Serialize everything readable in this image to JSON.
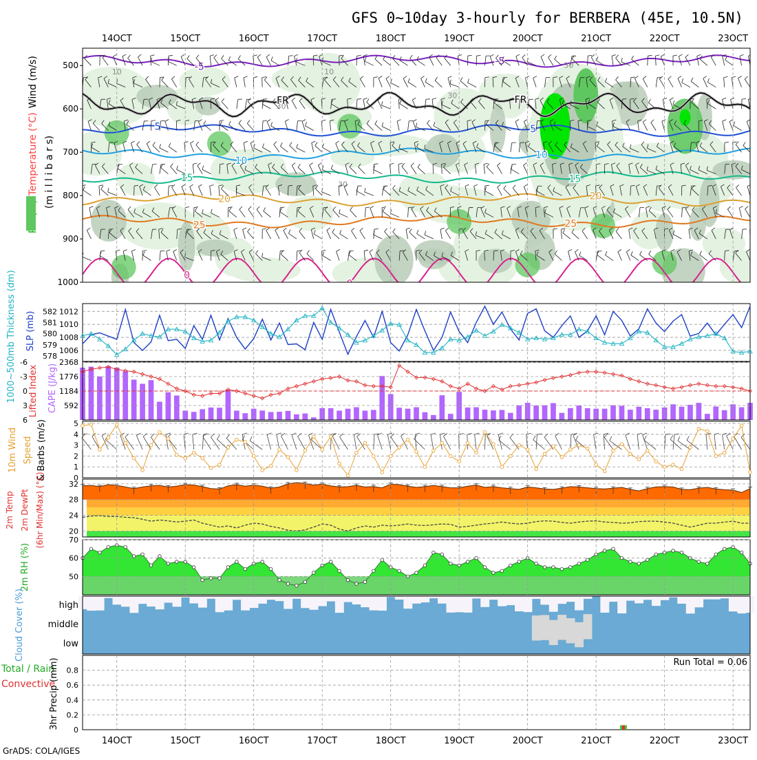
{
  "title": "GFS 0~10day 3-hourly for BERBERA (45E, 10.5N)",
  "credit": "GrADS: COLA/IGES",
  "time_axis": {
    "labels": [
      "14OCT",
      "15OCT",
      "16OCT",
      "17OCT",
      "18OCT",
      "19OCT",
      "20OCT",
      "21OCT",
      "22OCT",
      "23OCT"
    ],
    "start_day": 13.5,
    "end_day": 23.25
  },
  "chart_data": [
    {
      "type": "heatmap",
      "id": "profile",
      "ylabel_parts": [
        "RH (%)",
        "Temperature (°C)",
        "Wind (m/s)"
      ],
      "ylabel_unit": "(m i l l i b a r s)",
      "y_ticks": [
        500,
        600,
        700,
        800,
        900,
        1000
      ],
      "y_range": [
        460,
        1000
      ],
      "isotherms": [
        {
          "label": "-5",
          "color": "#7a1fbf",
          "base": 490
        },
        {
          "label": "FR",
          "color": "#000000",
          "base": 590
        },
        {
          "label": "5",
          "color": "#1f4fd6",
          "base": 650
        },
        {
          "label": "10",
          "color": "#1fa0e0",
          "base": 705
        },
        {
          "label": "15",
          "color": "#14b98c",
          "base": 758
        },
        {
          "label": "20",
          "color": "#dca032",
          "base": 810
        },
        {
          "label": "25",
          "color": "#e0781e",
          "base": 860
        },
        {
          "label": "0",
          "color": "#d8208c",
          "base": 960
        }
      ],
      "rh_labels": [
        "10",
        "10",
        "30",
        "30",
        "30",
        "30"
      ],
      "colors": {
        "rh_light": "#e4f2e1",
        "rh_mid": "#b9ccb9",
        "rh_dark": "#5fc75f",
        "rh_peak": "#00e600"
      }
    },
    {
      "type": "line",
      "id": "slp_thickness",
      "ylabel_left": "1000~500mb Thickness (dm)",
      "ylabel_right": "SLP (mb)",
      "left_ticks": [
        578,
        579,
        580,
        581,
        582
      ],
      "left_range": [
        577.5,
        582.7
      ],
      "right_ticks": [
        1006,
        1008,
        1010,
        1012
      ],
      "right_range": [
        1004.3,
        1013.2
      ],
      "series": [
        {
          "name": "SLP (mb)",
          "color": "#1c3fc4",
          "values": [
            1007.0,
            1008.4,
            1008.7,
            1008.2,
            1007.7,
            1012.3,
            1007.2,
            1006.0,
            1007.3,
            1011.4,
            1007.5,
            1007.7,
            1006.3,
            1009.8,
            1007.7,
            1011.4,
            1007.6,
            1010.9,
            1008.0,
            1006.2,
            1007.8,
            1010.8,
            1007.6,
            1010.2,
            1006.9,
            1007.0,
            1006.1,
            1010.3,
            1007.7,
            1012.3,
            1008.8,
            1005.4,
            1008.1,
            1010.6,
            1008.0,
            1012.0,
            1007.2,
            1005.9,
            1008.4,
            1012.3,
            1009.0,
            1006.0,
            1008.0,
            1011.9,
            1008.9,
            1007.2,
            1010.3,
            1012.8,
            1010.0,
            1011.9,
            1009.3,
            1007.6,
            1011.7,
            1012.4,
            1009.0,
            1008.0,
            1009.8,
            1011.3,
            1008.0,
            1009.0,
            1011.3,
            1008.4,
            1012.0,
            1010.6,
            1008.2,
            1009.3,
            1012.4,
            1010.2,
            1008.9,
            1010.5,
            1011.5,
            1008.2,
            1008.6,
            1010.2,
            1008.4,
            1010.0,
            1011.5,
            1009.5,
            1012.8
          ]
        },
        {
          "name": "1000~500mb Thickness (dm)",
          "color": "#22b3c4",
          "values": [
            579.8,
            580.0,
            579.5,
            578.9,
            578.1,
            578.6,
            579.4,
            580.0,
            579.8,
            579.7,
            580.4,
            580.4,
            580.2,
            579.6,
            579.3,
            579.4,
            580.1,
            581.1,
            581.5,
            581.5,
            581.2,
            580.6,
            580.0,
            579.7,
            580.4,
            581.2,
            581.6,
            581.6,
            582.3,
            581.0,
            580.5,
            579.9,
            579.2,
            579.4,
            579.8,
            580.3,
            580.9,
            580.8,
            579.4,
            579.0,
            578.3,
            578.3,
            578.7,
            579.5,
            579.4,
            579.7,
            580.3,
            579.8,
            580.2,
            580.8,
            580.5,
            580.1,
            579.5,
            579.6,
            579.5,
            579.6,
            579.9,
            579.9,
            580.4,
            580.2,
            579.6,
            579.2,
            579.1,
            579.1,
            579.6,
            580.2,
            580.1,
            579.4,
            578.8,
            578.8,
            579.1,
            579.5,
            579.7,
            579.8,
            580.0,
            579.6,
            578.4,
            578.3,
            578.4
          ]
        }
      ]
    },
    {
      "type": "bar",
      "id": "cape_li",
      "ylabel_left": "Lifted Index",
      "ylabel_right": "CAPE (J/kg)",
      "left_ticks": [
        -6,
        -3,
        0,
        3,
        6
      ],
      "right_ticks": [
        592,
        1184,
        1776,
        2368
      ],
      "cape_range": [
        0,
        2368
      ],
      "series": [
        {
          "name": "CAPE (J/kg)",
          "color": "#b266ff",
          "values": [
            2140,
            2180,
            1780,
            2200,
            2140,
            1990,
            1650,
            1480,
            1630,
            745,
            1130,
            1000,
            380,
            330,
            440,
            510,
            500,
            1240,
            380,
            275,
            460,
            385,
            325,
            335,
            370,
            230,
            265,
            105,
            485,
            480,
            380,
            460,
            520,
            380,
            410,
            1800,
            1060,
            500,
            460,
            520,
            315,
            200,
            1010,
            250,
            1150,
            510,
            520,
            420,
            390,
            410,
            290,
            595,
            700,
            590,
            600,
            690,
            290,
            485,
            590,
            480,
            460,
            460,
            600,
            580,
            420,
            540,
            480,
            420,
            510,
            640,
            540,
            620,
            700,
            250,
            550,
            400,
            640,
            520,
            700
          ]
        },
        {
          "name": "Lifted Index",
          "color": "#e03030",
          "values": [
            -4.0,
            -4.5,
            -4.8,
            -5.0,
            -4.5,
            -4.2,
            -4.0,
            -3.5,
            -3.0,
            -2.5,
            -1.5,
            -0.5,
            0.0,
            0.8,
            1.0,
            0.5,
            0.5,
            -0.3,
            0.0,
            0.5,
            1.0,
            1.5,
            0.8,
            0.5,
            -0.5,
            -1.0,
            -1.5,
            -2.0,
            -2.5,
            -2.7,
            -3.0,
            -2.2,
            -2.0,
            -1.2,
            -1.0,
            -1.0,
            -0.8,
            -5.3,
            -4.0,
            -2.8,
            -2.8,
            -2.5,
            -2.0,
            -1.0,
            -0.5,
            -1.5,
            -0.5,
            0.0,
            -1.0,
            -0.3,
            -1.0,
            -1.2,
            -1.5,
            -1.8,
            -2.3,
            -2.7,
            -3.0,
            -3.3,
            -3.8,
            -4.0,
            -4.0,
            -3.8,
            -3.5,
            -3.2,
            -2.5,
            -2.0,
            -1.5,
            -1.2,
            -0.8,
            -0.5,
            -0.8,
            -1.2,
            -1.5,
            -1.2,
            -1.0,
            -1.0,
            -0.8,
            -0.5,
            0.0
          ]
        }
      ]
    },
    {
      "type": "line",
      "id": "wind10m",
      "ylabel": "10m Wind Speed & Barbs (m/s)",
      "y_ticks": [
        0,
        1,
        2,
        3,
        4,
        5
      ],
      "y_range": [
        0,
        5.2
      ],
      "series": [
        {
          "name": "10m Wind Speed",
          "color": "#e8a030",
          "values": [
            4.8,
            4.9,
            2.6,
            3.7,
            4.9,
            3.2,
            1.8,
            0.7,
            3.0,
            4.2,
            3.6,
            2.1,
            1.8,
            2.3,
            1.8,
            0.9,
            1.2,
            2.8,
            3.5,
            3.3,
            2.0,
            0.7,
            1.1,
            2.6,
            1.9,
            0.7,
            2.5,
            3.8,
            2.6,
            3.8,
            1.3,
            0.2,
            2.3,
            3.2,
            2.0,
            0.5,
            2.0,
            2.8,
            3.5,
            2.4,
            1.0,
            2.5,
            3.2,
            2.0,
            1.5,
            3.2,
            2.3,
            4.2,
            3.1,
            1.0,
            2.0,
            3.0,
            2.6,
            0.8,
            2.2,
            2.9,
            1.9,
            2.6,
            3.0,
            2.7,
            1.2,
            0.6,
            2.5,
            3.1,
            2.2,
            1.7,
            2.5,
            1.5,
            1.0,
            1.2,
            0.8,
            2.8,
            4.5,
            4.3,
            2.0,
            2.3,
            3.6,
            4.8,
            0.5
          ]
        }
      ]
    },
    {
      "type": "area",
      "id": "temp2m",
      "ylabel_parts": [
        "2m Temp",
        "2m DewPt",
        "(6hr Min/Max) (°C)"
      ],
      "y_ticks": [
        20,
        24,
        28,
        32
      ],
      "y_range": [
        18.5,
        33.2
      ],
      "series": [
        {
          "name": "2m Temp",
          "color": "#ff6a00",
          "values": [
            31.5,
            31.6,
            31.3,
            31.8,
            31.6,
            31.2,
            30.8,
            31.2,
            31.5,
            31.6,
            31.2,
            31.4,
            31.8,
            31.7,
            31.3,
            30.8,
            30.7,
            31.5,
            31.8,
            31.4,
            31.7,
            31.4,
            30.9,
            31.2,
            32.0,
            32.3,
            32.1,
            31.7,
            31.9,
            31.5,
            31.2,
            31.3,
            31.6,
            31.2,
            31.3,
            31.0,
            31.9,
            31.8,
            31.4,
            31.1,
            31.3,
            31.6,
            31.3,
            31.0,
            31.0,
            31.4,
            31.7,
            31.1,
            31.3,
            31.0,
            30.8,
            30.6,
            31.2,
            31.0,
            30.7,
            30.6,
            30.9,
            31.3,
            31.2,
            31.0,
            30.8,
            30.7,
            30.9,
            31.1,
            30.6,
            30.2,
            30.8,
            31.2,
            31.3,
            31.2,
            30.6,
            30.5,
            30.9,
            31.1,
            30.7,
            30.5,
            30.4,
            29.8,
            30.8
          ]
        },
        {
          "name": "2m DewPt",
          "color": "#444444",
          "values": [
            23.5,
            23.8,
            23.9,
            23.7,
            23.7,
            23.5,
            23.4,
            23.0,
            22.5,
            22.8,
            22.6,
            22.3,
            22.5,
            22.8,
            22.0,
            21.5,
            21.0,
            21.3,
            20.8,
            21.5,
            22.0,
            21.8,
            21.2,
            20.8,
            20.2,
            20.0,
            20.3,
            21.0,
            21.8,
            21.5,
            20.5,
            20.0,
            20.8,
            21.3,
            21.0,
            21.5,
            21.3,
            21.5,
            21.8,
            21.5,
            21.4,
            21.6,
            21.8,
            21.7,
            21.0,
            21.2,
            21.5,
            21.8,
            22.0,
            22.3,
            22.0,
            21.8,
            22.0,
            22.4,
            22.6,
            22.5,
            22.2,
            22.0,
            22.3,
            22.5,
            22.6,
            22.3,
            22.2,
            22.0,
            22.1,
            22.4,
            22.5,
            22.5,
            22.3,
            22.0,
            21.5,
            21.0,
            21.5,
            22.0,
            22.0,
            22.3,
            22.5,
            22.0,
            22.0
          ]
        }
      ]
    },
    {
      "type": "area",
      "id": "rh2m",
      "ylabel": "2m RH (%)",
      "y_ticks": [
        50,
        60,
        70
      ],
      "y_range": [
        40,
        70
      ],
      "series": [
        {
          "name": "2m RH",
          "color": "#33e633",
          "values": [
            60,
            65,
            63,
            66,
            67,
            66,
            61,
            62,
            56,
            61,
            57,
            58,
            58,
            55,
            48,
            49,
            49,
            55,
            58,
            54,
            57,
            58,
            54,
            48,
            46,
            45,
            47,
            52,
            56,
            58,
            53,
            48,
            46,
            47,
            53,
            59,
            55,
            53,
            50,
            52,
            56,
            63,
            62,
            57,
            56,
            58,
            60,
            55,
            52,
            53,
            56,
            58,
            60,
            57,
            55,
            55,
            54,
            55,
            57,
            59,
            62,
            64,
            65,
            60,
            58,
            57,
            59,
            62,
            63,
            64,
            63,
            60,
            58,
            57,
            62,
            65,
            66,
            63,
            57
          ]
        }
      ]
    },
    {
      "type": "area",
      "id": "cloud",
      "ylabel": "Cloud Cover (%)",
      "levels": [
        "high",
        "middle",
        "low"
      ],
      "colors": {
        "cloud": "#6aaad4",
        "gap": "#f6f4fa",
        "lowgap": "#d8d8d8"
      }
    },
    {
      "type": "bar",
      "id": "precip",
      "ylabel_left": "Total / Rain",
      "ylabel_left2": "Convective",
      "ylabel": "3hr Precip (mm)",
      "y_ticks": [
        0,
        0.2,
        0.4,
        0.6,
        0.8
      ],
      "y_range": [
        0,
        1.0
      ],
      "run_total": "Run Total = 0.06",
      "series": [
        {
          "name": "Total / Rain",
          "color": "#3cc83c",
          "day": 21.4,
          "value": 0.06
        },
        {
          "name": "Convective",
          "color": "#e03030",
          "day": 21.4,
          "value": 0.06
        }
      ]
    }
  ]
}
